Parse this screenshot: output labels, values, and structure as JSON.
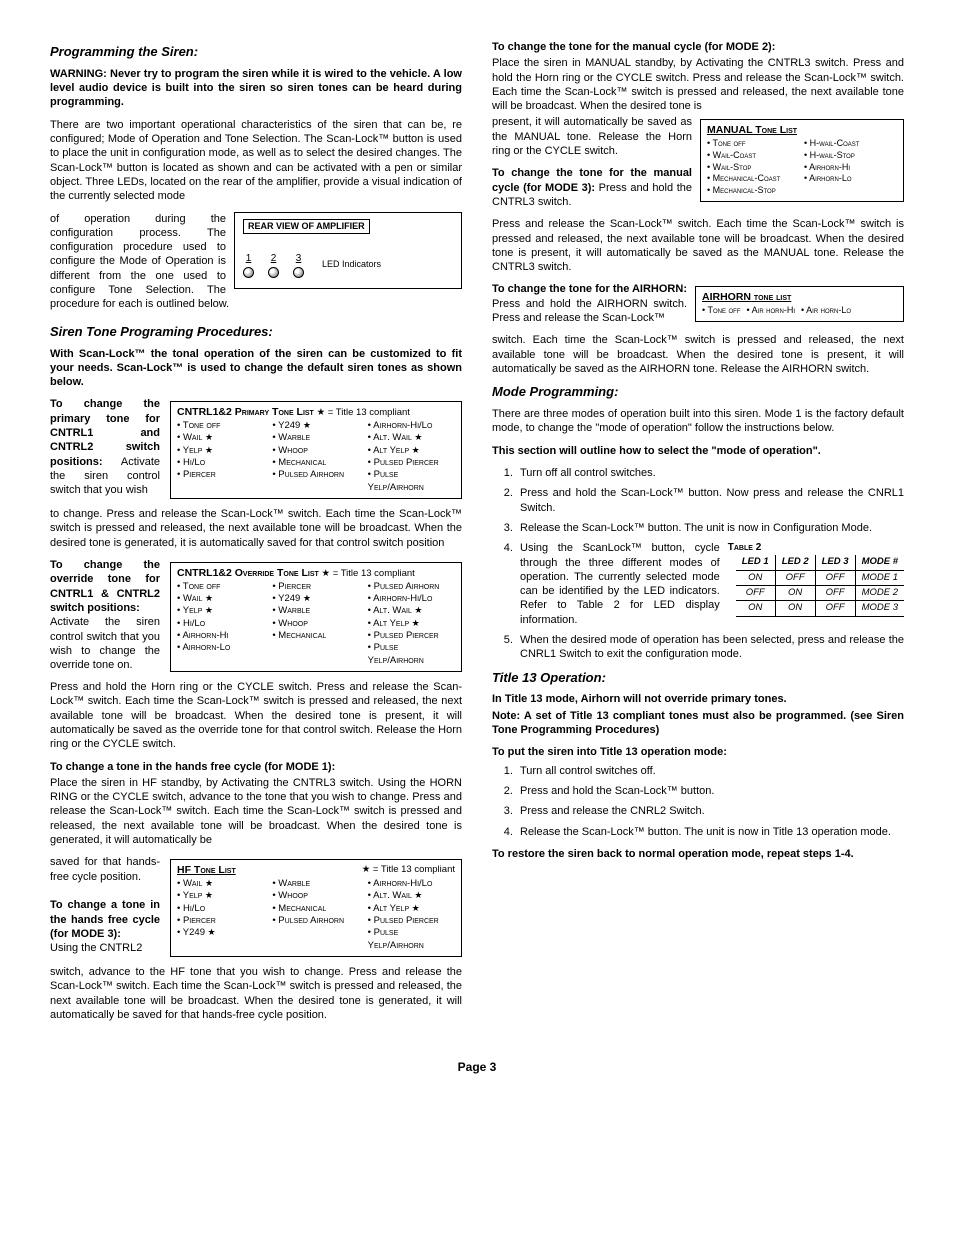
{
  "left": {
    "h1": "Programming the Siren:",
    "warn": "WARNING: Never try to program the siren while it is wired to the vehicle. A low level audio device is built into the siren so siren tones can be heard during programming.",
    "p1": "There are two important operational characteristics of the siren that can be, re configured; Mode of Operation and Tone Selection. The Scan-Lock™ button is used to place the unit in configuration mode, as well as to select the desired changes. The Scan-Lock™ button is located as shown and can be activated with a pen or similar object. Three LEDs, located on the rear of the amplifier, provide a visual indication of the currently selected mode",
    "p1b": "of operation during the configuration process. The configuration procedure used to configure the Mode of Operation is different from the one used to configure Tone Selection. The procedure for each is outlined below.",
    "amp_title": "REAR VIEW OF AMPLIFIER",
    "amp_led_label": "LED Indicators",
    "h2": "Siren Tone Programing Procedures:",
    "p2": "With Scan-Lock™ the tonal operation of the siren can be customized to fit your needs. Scan-Lock™ is used to change the default siren tones as shown below.",
    "p3a_label": "To change the primary tone for CNTRL1 and CNTRL2 switch positions:",
    "p3a_txt": " Activate the siren control switch that you wish",
    "primary_title": "CNTRL1&2 Primary Tone List",
    "title13_note": "= Title 13 compliant",
    "primary_cols": [
      [
        "Tone off",
        "Wail★",
        "Yelp★",
        "Hi/Lo",
        "Piercer"
      ],
      [
        "Y249★",
        "Warble",
        "Whoop",
        "Mechanical",
        "Pulsed Airhorn"
      ],
      [
        "Airhorn-Hi/Lo",
        "Alt. Wail★",
        "Alt Yelp ★",
        "Pulsed Piercer",
        "Pulse Yelp/Airhorn"
      ]
    ],
    "p3b": "to change. Press and release the Scan-Lock™ switch. Each time the Scan-Lock™ switch is pressed and released, the next available tone will be broadcast. When the desired tone is generated, it is automatically saved for that control switch position",
    "p4a_label": "To change the override tone for CNTRL1 & CNTRL2 switch positions:",
    "p4a_txt": "Activate the siren control switch that you wish to change the override tone on.",
    "override_title": "CNTRL1&2 Override Tone List",
    "override_cols": [
      [
        "Tone off",
        "Wail★",
        "Yelp★",
        "Hi/Lo",
        "Airhorn-Hi",
        "Airhorn-Lo"
      ],
      [
        "Piercer",
        "Y249★",
        "Warble",
        "Whoop",
        "Mechanical",
        ""
      ],
      [
        "Pulsed Airhorn",
        "Airhorn-Hi/Lo",
        "Alt. Wail★",
        "Alt Yelp ★",
        "Pulsed Piercer",
        "Pulse Yelp/Airhorn"
      ]
    ],
    "p4b": "Press and hold the Horn ring or the CYCLE switch.  Press and release the Scan-Lock™ switch. Each time the Scan-Lock™ switch is pressed and released, the next available tone will be broadcast. When the desired tone is present, it will automatically be saved as the override tone for that control switch. Release the Horn ring or the CYCLE switch.",
    "p5_label": "To change a tone in the hands free cycle (for MODE 1):",
    "p5": "Place the siren in HF standby, by Activating the CNTRL3 switch. Using the HORN RING or the CYCLE switch,  advance to the tone that you wish to change. Press and release the Scan-Lock™ switch. Each time the Scan-Lock™ switch is pressed and released, the next available tone will be broadcast. When the  desired tone is generated, it will automatically be",
    "p5b": "saved for that hands-free  cycle position.",
    "p6_label": "To change a tone in the hands free cycle (for MODE 3):",
    "p6a": "Using the CNTRL2",
    "hf_title": "HF Tone List",
    "hf_cols": [
      [
        "Wail★",
        "Yelp★",
        "Hi/Lo",
        "Piercer",
        "Y249★"
      ],
      [
        "Warble",
        "Whoop",
        "Mechanical",
        "Pulsed Airhorn",
        ""
      ],
      [
        "Airhorn-Hi/Lo",
        "Alt. Wail★",
        "Alt Yelp ★",
        "Pulsed Piercer",
        "Pulse Yelp/Airhorn"
      ]
    ],
    "p6b": "switch, advance to the HF tone that you wish to change. Press and release the Scan-Lock™ switch. Each time the Scan-Lock™ switch is pressed and released, the next available tone will be broadcast. When the desired tone is generated, it will automatically be saved for that hands-free cycle position."
  },
  "right": {
    "p1_label": "To change the tone for the manual cycle (for MODE 2):",
    "p1": "Place the siren in MANUAL standby, by Activating the CNTRL3 switch. Press and hold the Horn ring or the CYCLE switch. Press and release the Scan-Lock™ switch. Each time the Scan-Lock™ switch is pressed and released, the next available tone will be broadcast. When the desired tone is",
    "p1b": "present, it will automatically be saved as the MANUAL tone. Release the Horn ring or the CYCLE switch.",
    "p2_label": "To change the tone for the manual cycle (for MODE 3):",
    "p2a": " Press and hold the CNTRL3 switch.",
    "manual_title": "MANUAL Tone List",
    "manual_cols": [
      [
        "Tone off",
        "Wail-Coast",
        "Wail-Stop",
        "Mechanical-Coast",
        "Mechanical-Stop"
      ],
      [
        "H-wail-Coast",
        "H-wail-Stop",
        "Airhorn-Hi",
        "Airhorn-Lo",
        ""
      ]
    ],
    "p2b": "Press and release the Scan-Lock™ switch. Each time the Scan-Lock™ switch is pressed and released, the next available tone will be broadcast. When the desired tone is present, it will automatically be saved as the MANUAL tone. Release the CNTRL3 switch.",
    "p3_label": "To change the tone for the AIRHORN:",
    "p3a": " Press and hold the AIRHORN switch. Press and release the Scan-Lock™",
    "airhorn_title": "AIRHORN tone list",
    "airhorn_items": [
      "Tone off",
      "Air horn-Hi",
      "Air horn-Lo"
    ],
    "p3b": "switch. Each time the Scan-Lock™ switch is pressed and   released, the next available tone will be broadcast. When the    desired tone is present, it will automatically be saved as the AIRHORN tone. Release the AIRHORN switch.",
    "h_mode": "Mode Programming:",
    "mode_p": "There are three modes of operation built into this  siren. Mode 1 is the factory default mode,  to change the \"mode of operation\" follow the instructions below.",
    "mode_sec": "This section will outline how to select the \"mode of operation\".",
    "mode_steps": [
      "Turn off all control switches.",
      "Press and hold the Scan-Lock™ button. Now press and release the CNRL1 Switch.",
      "Release the Scan-Lock™ button. The unit is now in Configuration Mode.",
      "Using the ScanLock™ button, cycle through the three different modes of operation. The currently selected mode can be identified by the LED indicators. Refer to Table 2 for LED display information.",
      "When the desired mode of operation has been selected, press and release the CNRL1 Switch to exit the configuration mode."
    ],
    "table2_caption": "Table 2",
    "table2_headers": [
      "LED 1",
      "LED 2",
      "LED 3",
      "MODE #"
    ],
    "table2_rows": [
      [
        "ON",
        "OFF",
        "OFF",
        "MODE 1"
      ],
      [
        "OFF",
        "ON",
        "OFF",
        "MODE 2"
      ],
      [
        "ON",
        "ON",
        "OFF",
        "MODE 3"
      ]
    ],
    "h_t13": "Title 13 Operation:",
    "t13_p1": "In Title 13 mode, Airhorn will not override primary tones.",
    "t13_p2": "Note: A set of Title 13 compliant tones must also be programmed. (see Siren Tone Programming Procedures)",
    "t13_p3": "To put the siren into Title 13 operation mode:",
    "t13_steps": [
      "Turn all control switches off.",
      "Press and hold the Scan-Lock™ button.",
      "Press and release the CNRL2 Switch.",
      "Release the Scan-Lock™ button. The unit is now in Title 13 operation mode."
    ],
    "t13_p4": "To restore the siren back to normal operation mode, repeat steps 1-4."
  },
  "page": "Page 3"
}
